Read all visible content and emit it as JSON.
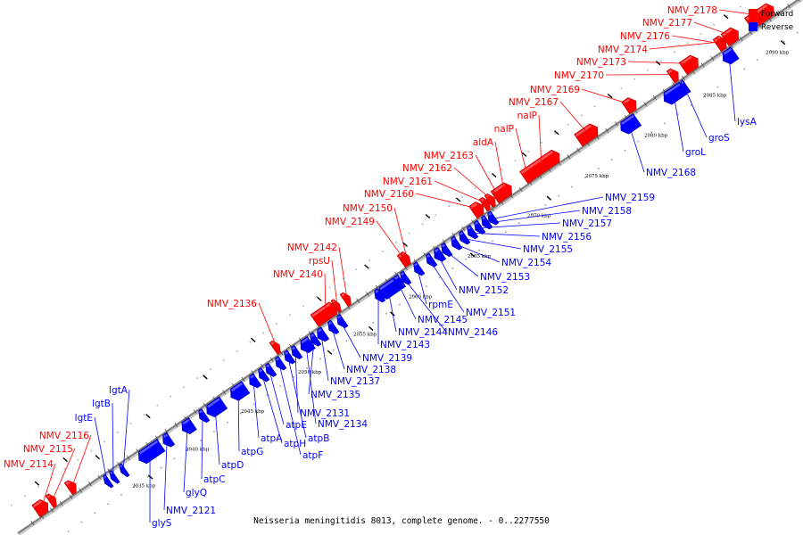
{
  "legend": {
    "forward_label": "Forward",
    "reverse_label": "Reverse",
    "forward_color": "#ff0000",
    "reverse_color": "#0000ff"
  },
  "caption": "Neisseria meningitidis 8013, complete genome. - 0..2277550",
  "scale_labels": [
    "2035 kbp",
    "2040 kbp",
    "2045 kbp",
    "2050 kbp",
    "2055 kbp",
    "2060 kbp",
    "2065 kbp",
    "2070 kbp",
    "2075 kbp",
    "2080 kbp",
    "2085 kbp",
    "2090 kbp"
  ],
  "forward_genes": [
    "NMV_2114",
    "NMV_2115",
    "NMV_2116",
    "NMV_2136",
    "NMV_2140",
    "rpsU",
    "NMV_2142",
    "NMV_2149",
    "NMV_2150",
    "NMV_2160",
    "NMV_2161",
    "NMV_2162",
    "NMV_2163",
    "aldA",
    "nalP",
    "nalP",
    "NMV_2167",
    "NMV_2169",
    "NMV_2170",
    "NMV_2173",
    "NMV_2174",
    "NMV_2176",
    "NMV_2177",
    "NMV_2178"
  ],
  "reverse_genes": [
    "lgtA",
    "lgtB",
    "lgtE",
    "glyS",
    "NMV_2121",
    "glyQ",
    "atpC",
    "atpD",
    "atpG",
    "atpA",
    "atpH",
    "atpE",
    "atpF",
    "atpB",
    "NMV_2131",
    "NMV_2134",
    "NMV_2135",
    "NMV_2137",
    "NMV_2138",
    "NMV_2139",
    "NMV_2143",
    "NMV_2144",
    "NMV_2145",
    "NMV_2146",
    "rpmE",
    "NMV_2151",
    "NMV_2152",
    "NMV_2153",
    "NMV_2154",
    "NMV_2155",
    "NMV_2156",
    "NMV_2157",
    "NMV_2158",
    "NMV_2159",
    "NMV_2168",
    "groL",
    "groS",
    "lysA"
  ]
}
